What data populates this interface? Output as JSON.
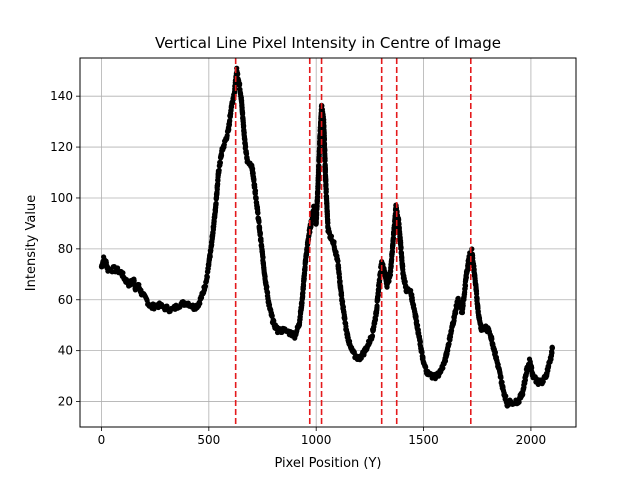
{
  "chart_data": {
    "type": "scatter",
    "title": "Vertical Line Pixel Intensity in Centre of Image",
    "xlabel": "Pixel Position (Y)",
    "ylabel": "Intensity Value",
    "xlim": [
      -100,
      2210
    ],
    "ylim": [
      10,
      155
    ],
    "xticks": [
      0,
      500,
      1000,
      1500,
      2000
    ],
    "yticks": [
      20,
      40,
      60,
      80,
      100,
      120,
      140
    ],
    "grid": true,
    "marker_color": "#000000",
    "vlines": {
      "x": [
        625,
        970,
        1025,
        1305,
        1375,
        1720
      ],
      "color": "#e41a1c",
      "style": "dashed"
    },
    "profile_points": [
      [
        0,
        73
      ],
      [
        10,
        76
      ],
      [
        20,
        75
      ],
      [
        30,
        72
      ],
      [
        60,
        72
      ],
      [
        90,
        71
      ],
      [
        110,
        68
      ],
      [
        130,
        66
      ],
      [
        150,
        68
      ],
      [
        160,
        64
      ],
      [
        170,
        66
      ],
      [
        190,
        62
      ],
      [
        210,
        60
      ],
      [
        230,
        57
      ],
      [
        260,
        58
      ],
      [
        290,
        57
      ],
      [
        330,
        56
      ],
      [
        360,
        58
      ],
      [
        400,
        59
      ],
      [
        430,
        57
      ],
      [
        450,
        58
      ],
      [
        470,
        62
      ],
      [
        490,
        68
      ],
      [
        510,
        80
      ],
      [
        530,
        95
      ],
      [
        545,
        110
      ],
      [
        560,
        118
      ],
      [
        575,
        122
      ],
      [
        590,
        126
      ],
      [
        605,
        136
      ],
      [
        620,
        142
      ],
      [
        630,
        150
      ],
      [
        640,
        146
      ],
      [
        650,
        140
      ],
      [
        660,
        130
      ],
      [
        670,
        120
      ],
      [
        680,
        114
      ],
      [
        700,
        113
      ],
      [
        720,
        100
      ],
      [
        740,
        85
      ],
      [
        760,
        70
      ],
      [
        780,
        58
      ],
      [
        800,
        51
      ],
      [
        820,
        48
      ],
      [
        850,
        48
      ],
      [
        880,
        47
      ],
      [
        900,
        46
      ],
      [
        920,
        50
      ],
      [
        935,
        60
      ],
      [
        950,
        75
      ],
      [
        965,
        85
      ],
      [
        980,
        92
      ],
      [
        990,
        97
      ],
      [
        1000,
        90
      ],
      [
        1010,
        108
      ],
      [
        1018,
        125
      ],
      [
        1025,
        136
      ],
      [
        1035,
        130
      ],
      [
        1045,
        105
      ],
      [
        1055,
        88
      ],
      [
        1065,
        85
      ],
      [
        1080,
        83
      ],
      [
        1100,
        75
      ],
      [
        1120,
        60
      ],
      [
        1140,
        48
      ],
      [
        1160,
        41
      ],
      [
        1180,
        38
      ],
      [
        1200,
        37
      ],
      [
        1220,
        39
      ],
      [
        1240,
        42
      ],
      [
        1260,
        46
      ],
      [
        1280,
        55
      ],
      [
        1295,
        68
      ],
      [
        1305,
        75
      ],
      [
        1315,
        72
      ],
      [
        1330,
        66
      ],
      [
        1345,
        70
      ],
      [
        1360,
        85
      ],
      [
        1372,
        97
      ],
      [
        1385,
        90
      ],
      [
        1395,
        80
      ],
      [
        1405,
        70
      ],
      [
        1420,
        64
      ],
      [
        1440,
        63
      ],
      [
        1460,
        55
      ],
      [
        1480,
        45
      ],
      [
        1500,
        35
      ],
      [
        1520,
        31
      ],
      [
        1540,
        30
      ],
      [
        1560,
        30
      ],
      [
        1580,
        32
      ],
      [
        1600,
        36
      ],
      [
        1620,
        44
      ],
      [
        1640,
        52
      ],
      [
        1660,
        60
      ],
      [
        1680,
        55
      ],
      [
        1700,
        70
      ],
      [
        1715,
        78
      ],
      [
        1725,
        79
      ],
      [
        1740,
        68
      ],
      [
        1755,
        55
      ],
      [
        1770,
        48
      ],
      [
        1790,
        49
      ],
      [
        1810,
        47
      ],
      [
        1830,
        40
      ],
      [
        1850,
        33
      ],
      [
        1870,
        25
      ],
      [
        1890,
        19
      ],
      [
        1910,
        20
      ],
      [
        1940,
        20
      ],
      [
        1960,
        23
      ],
      [
        1980,
        32
      ],
      [
        1995,
        36
      ],
      [
        2010,
        30
      ],
      [
        2030,
        28
      ],
      [
        2050,
        27
      ],
      [
        2070,
        30
      ],
      [
        2085,
        35
      ],
      [
        2095,
        38
      ],
      [
        2100,
        41
      ]
    ]
  }
}
